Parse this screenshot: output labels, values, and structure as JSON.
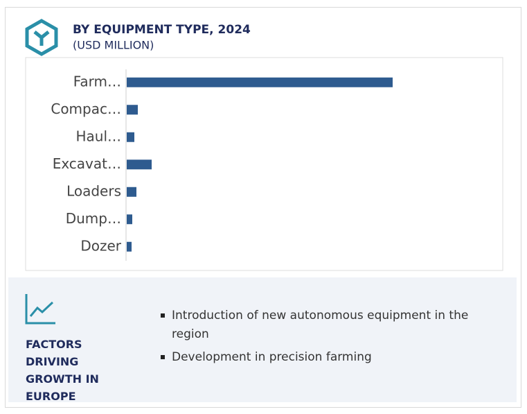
{
  "chart_data": {
    "type": "hbar",
    "title": "BY EQUIPMENT TYPE, 2024",
    "subtitle": "(USD MILLION)",
    "categories": [
      "Farm…",
      "Compac…",
      "Haul…",
      "Excavat…",
      "Loaders",
      "Dump…",
      "Dozer"
    ],
    "values": [
      384,
      16,
      11,
      36,
      14,
      8,
      7
    ],
    "color": "#2e5b8f"
  },
  "factors": {
    "title": "FACTORS DRIVING GROWTH IN EUROPE",
    "items": [
      "Introduction of new autonomous equipment in the region",
      "Development in precision farming"
    ]
  }
}
